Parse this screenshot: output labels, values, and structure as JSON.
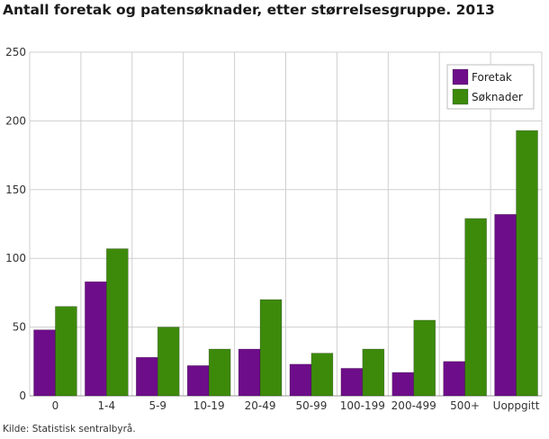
{
  "title": "Antall foretak og patensøknader, etter størrelsesgruppe. 2013",
  "source": "Kilde: Statistisk sentralbyrå.",
  "chart_data": {
    "type": "bar",
    "title": "Antall foretak og patensøknader, etter størrelsesgruppe. 2013",
    "xlabel": "",
    "ylabel": "",
    "categories": [
      "0",
      "1-4",
      "5-9",
      "10-19",
      "20-49",
      "50-99",
      "100-199",
      "200-499",
      "500+",
      "Uoppgitt"
    ],
    "series": [
      {
        "name": "Foretak",
        "color": "#6e0d8a",
        "values": [
          48,
          83,
          28,
          22,
          34,
          23,
          20,
          17,
          25,
          132
        ]
      },
      {
        "name": "Søknader",
        "color": "#3d8a0b",
        "values": [
          65,
          107,
          50,
          34,
          70,
          31,
          34,
          55,
          129,
          193
        ]
      }
    ],
    "ylim": [
      0,
      250
    ],
    "yticks": [
      0,
      50,
      100,
      150,
      200,
      250
    ],
    "grid": true,
    "legend_position": "top-right"
  }
}
